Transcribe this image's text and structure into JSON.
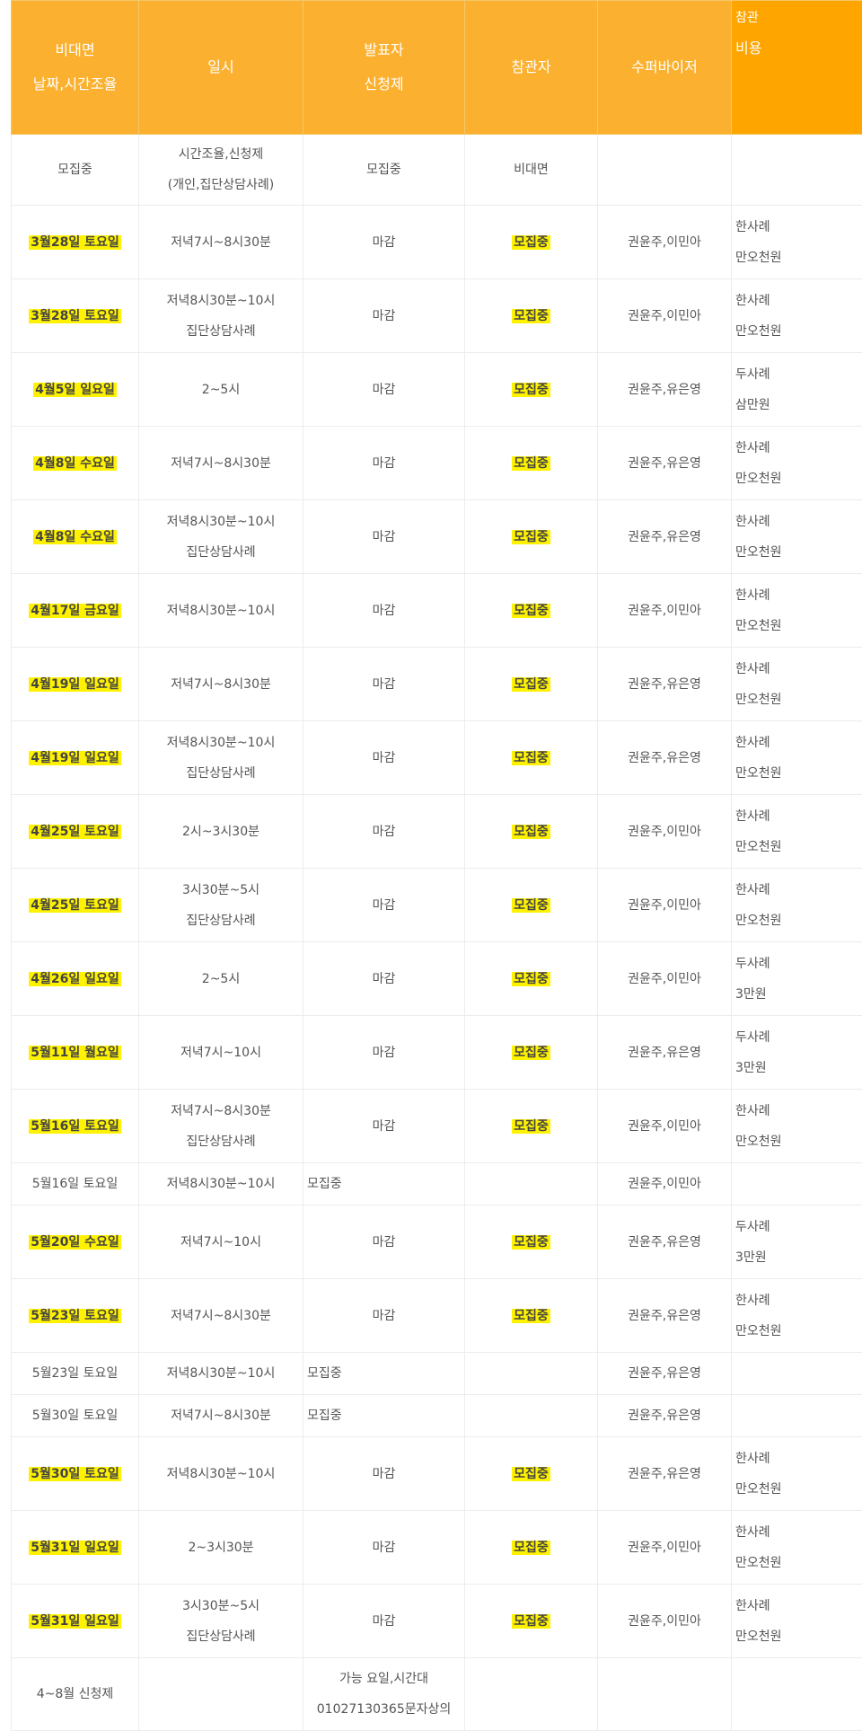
{
  "colors": {
    "header": "#fbb12f",
    "header_last": "#ffa500",
    "highlight": "#fff200"
  },
  "header": {
    "col1": [
      "비대면",
      "날짜,시간조율"
    ],
    "col2": [
      "일시"
    ],
    "col3": [
      "발표자",
      "신청제"
    ],
    "col4": [
      "참관자"
    ],
    "col5": [
      "수퍼바이저"
    ],
    "col6": [
      "참관",
      "비용"
    ]
  },
  "rows": [
    {
      "type": "first",
      "date": "모집중",
      "hl": false,
      "time": [
        "시간조율,신청제",
        "(개인,집단상담사례)"
      ],
      "presenter": "모집중",
      "observer": "비대면",
      "obs_hl": false,
      "supervisor": "",
      "cost": []
    },
    {
      "type": "tall",
      "date": "3월28일 토요일",
      "hl": true,
      "time": [
        "저녁7시~8시30분"
      ],
      "presenter": "마감",
      "observer": "모집중",
      "obs_hl": true,
      "supervisor": "권윤주,이민아",
      "cost": [
        "한사례",
        "만오천원"
      ]
    },
    {
      "type": "tall",
      "date": "3월28일 토요일",
      "hl": true,
      "time": [
        "저녁8시30분~10시",
        "집단상담사례"
      ],
      "presenter": "마감",
      "observer": "모집중",
      "obs_hl": true,
      "supervisor": "권윤주,이민아",
      "cost": [
        "한사례",
        "만오천원"
      ]
    },
    {
      "type": "tall",
      "date": "4월5일 일요일",
      "hl": true,
      "time": [
        "2~5시"
      ],
      "presenter": "마감",
      "observer": "모집중",
      "obs_hl": true,
      "supervisor": "권윤주,유은영",
      "cost": [
        "두사례",
        "삼만원"
      ]
    },
    {
      "type": "tall",
      "date": "4월8일 수요일",
      "hl": true,
      "time": [
        "저녁7시~8시30분"
      ],
      "presenter": "마감",
      "observer": "모집중",
      "obs_hl": true,
      "supervisor": "권윤주,유은영",
      "cost": [
        "한사례",
        "만오천원"
      ]
    },
    {
      "type": "tall",
      "date": "4월8일 수요일",
      "hl": true,
      "time": [
        "저녁8시30분~10시",
        "집단상담사례"
      ],
      "presenter": "마감",
      "observer": "모집중",
      "obs_hl": true,
      "supervisor": "권윤주,유은영",
      "cost": [
        "한사례",
        "만오천원"
      ]
    },
    {
      "type": "tall",
      "date": "4월17일 금요일",
      "hl": true,
      "time": [
        "저녁8시30분~10시"
      ],
      "presenter": "마감",
      "observer": "모집중",
      "obs_hl": true,
      "supervisor": "권윤주,이민아",
      "cost": [
        "한사례",
        "만오천원"
      ]
    },
    {
      "type": "tall",
      "date": "4월19일 일요일",
      "hl": true,
      "time": [
        "저녁7시~8시30분"
      ],
      "presenter": "마감",
      "observer": "모집중",
      "obs_hl": true,
      "supervisor": "권윤주,유은영",
      "cost": [
        "한사례",
        "만오천원"
      ]
    },
    {
      "type": "tall",
      "date": "4월19일 일요일",
      "hl": true,
      "time": [
        "저녁8시30분~10시",
        "집단상담사례"
      ],
      "presenter": "마감",
      "observer": "모집중",
      "obs_hl": true,
      "supervisor": "권윤주,유은영",
      "cost": [
        "한사례",
        "만오천원"
      ]
    },
    {
      "type": "tall",
      "date": "4월25일 토요일",
      "hl": true,
      "time": [
        "2시~3시30분"
      ],
      "presenter": "마감",
      "observer": "모집중",
      "obs_hl": true,
      "supervisor": "권윤주,이민아",
      "cost": [
        "한사례",
        "만오천원"
      ]
    },
    {
      "type": "tall",
      "date": "4월25일 토요일",
      "hl": true,
      "time": [
        "3시30분~5시",
        "집단상담사례"
      ],
      "presenter": "마감",
      "observer": "모집중",
      "obs_hl": true,
      "supervisor": "권윤주,이민아",
      "cost": [
        "한사례",
        "만오천원"
      ]
    },
    {
      "type": "tall",
      "date": "4월26일 일요일",
      "hl": true,
      "time": [
        "2~5시"
      ],
      "presenter": "마감",
      "observer": "모집중",
      "obs_hl": true,
      "supervisor": "권윤주,이민아",
      "cost": [
        "두사례",
        "3만원"
      ]
    },
    {
      "type": "tall",
      "date": "5월11일 월요일",
      "hl": true,
      "time": [
        "저녁7시~10시"
      ],
      "presenter": "마감",
      "observer": "모집중",
      "obs_hl": true,
      "supervisor": "권윤주,유은영",
      "cost": [
        "두사례",
        "3만원"
      ]
    },
    {
      "type": "tall",
      "date": "5월16일 토요일",
      "hl": true,
      "time": [
        "저녁7시~8시30분",
        "집단상담사례"
      ],
      "presenter": "마감",
      "observer": "모집중",
      "obs_hl": true,
      "supervisor": "권윤주,이민아",
      "cost": [
        "한사례",
        "만오천원"
      ]
    },
    {
      "type": "short",
      "date": "5월16일 토요일",
      "hl": false,
      "time": [
        "저녁8시30분~10시"
      ],
      "presenter": "모집중",
      "observer": "",
      "obs_hl": false,
      "supervisor": "권윤주,이민아",
      "cost": []
    },
    {
      "type": "tall",
      "date": "5월20일 수요일",
      "hl": true,
      "time": [
        "저녁7시~10시"
      ],
      "presenter": "마감",
      "observer": "모집중",
      "obs_hl": true,
      "supervisor": "권윤주,유은영",
      "cost": [
        "두사례",
        "3만원"
      ]
    },
    {
      "type": "tall",
      "date": "5월23일 토요일",
      "hl": true,
      "time": [
        "저녁7시~8시30분"
      ],
      "presenter": "마감",
      "observer": "모집중",
      "obs_hl": true,
      "supervisor": "권윤주,유은영",
      "cost": [
        "한사례",
        "만오천원"
      ]
    },
    {
      "type": "short",
      "date": "5월23일 토요일",
      "hl": false,
      "time": [
        "저녁8시30분~10시"
      ],
      "presenter": "모집중",
      "observer": "",
      "obs_hl": false,
      "supervisor": "권윤주,유은영",
      "cost": []
    },
    {
      "type": "short",
      "date": "5월30일 토요일",
      "hl": false,
      "time": [
        "저녁7시~8시30분"
      ],
      "presenter": "모집중",
      "observer": "",
      "obs_hl": false,
      "supervisor": "권윤주,유은영",
      "cost": []
    },
    {
      "type": "tall",
      "date": "5월30일 토요일",
      "hl": true,
      "time": [
        "저녁8시30분~10시"
      ],
      "presenter": "마감",
      "observer": "모집중",
      "obs_hl": true,
      "supervisor": "권윤주,유은영",
      "cost": [
        "한사례",
        "만오천원"
      ]
    },
    {
      "type": "tall",
      "date": "5월31일 일요일",
      "hl": true,
      "time": [
        "2~3시30분"
      ],
      "presenter": "마감",
      "observer": "모집중",
      "obs_hl": true,
      "supervisor": "권윤주,이민아",
      "cost": [
        "한사례",
        "만오천원"
      ]
    },
    {
      "type": "tall",
      "date": "5월31일 일요일",
      "hl": true,
      "time": [
        "3시30분~5시",
        "집단상담사례"
      ],
      "presenter": "마감",
      "observer": "모집중",
      "obs_hl": true,
      "supervisor": "권윤주,이민아",
      "cost": [
        "한사례",
        "만오천원"
      ]
    },
    {
      "type": "lastrow",
      "date": "4~8월 신청제",
      "hl": false,
      "time": [],
      "presenter_lines": [
        "가능  요일,시간대",
        "01027130365문자상의"
      ],
      "observer": "",
      "obs_hl": false,
      "supervisor": "",
      "cost": []
    }
  ]
}
